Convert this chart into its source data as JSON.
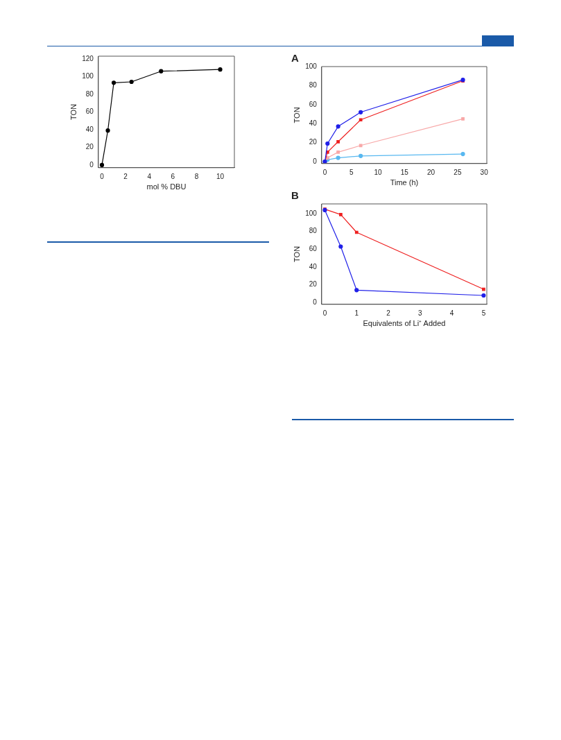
{
  "chart_data": [
    {
      "type": "line",
      "x": [
        0,
        0.5,
        1,
        2.5,
        5,
        10
      ],
      "values": [
        0,
        39,
        93,
        94,
        106,
        108
      ],
      "color": "#000000",
      "xlabel": "mol % DBU",
      "ylabel": "TON",
      "xlim": [
        -0.3,
        11.2
      ],
      "ylim": [
        -3,
        123
      ],
      "xticks": [
        0,
        2,
        4,
        6,
        8,
        10
      ],
      "yticks": [
        0,
        20,
        40,
        60,
        80,
        100,
        120
      ],
      "marker": "circle",
      "grid": false,
      "legend": false
    },
    {
      "type": "line",
      "title": "A",
      "xlabel": "Time (h)",
      "ylabel": "TON",
      "xlim": [
        -0.6,
        30.5
      ],
      "ylim": [
        -2,
        100
      ],
      "xticks": [
        0,
        5,
        10,
        15,
        20,
        25,
        30
      ],
      "yticks": [
        0,
        20,
        40,
        60,
        80,
        100
      ],
      "grid": false,
      "legend": false,
      "series": [
        {
          "color": "#2020e8",
          "marker": "circle",
          "x": [
            0,
            0.5,
            2.5,
            6.75,
            26
          ],
          "values": [
            0,
            19,
            37,
            52,
            86
          ]
        },
        {
          "color": "#ee2020",
          "marker": "square",
          "x": [
            0,
            0.5,
            2.5,
            6.75,
            26
          ],
          "values": [
            0,
            10,
            21,
            44,
            85
          ]
        },
        {
          "color": "#f8a8a8",
          "marker": "square",
          "x": [
            0,
            0.5,
            2.5,
            6.75,
            26
          ],
          "values": [
            0,
            4,
            10,
            17,
            45
          ]
        },
        {
          "color": "#58b8f0",
          "marker": "circle",
          "x": [
            0,
            0.5,
            2.5,
            6.75,
            26
          ],
          "values": [
            0,
            2,
            4,
            6,
            8
          ]
        }
      ]
    },
    {
      "type": "line",
      "title": "B",
      "xlabel": "Equivalents of Li⁺ Added",
      "ylabel": "TON",
      "xlim": [
        -0.1,
        5.1
      ],
      "ylim": [
        -2,
        111
      ],
      "xticks": [
        0,
        1,
        2,
        3,
        4,
        5
      ],
      "yticks": [
        0,
        20,
        40,
        60,
        80,
        100
      ],
      "grid": false,
      "legend": false,
      "series": [
        {
          "color": "#2020e8",
          "marker": "circle",
          "x": [
            0,
            0.5,
            1,
            5
          ],
          "values": [
            104,
            63,
            14,
            8
          ]
        },
        {
          "color": "#ee2020",
          "marker": "square",
          "x": [
            0,
            0.5,
            1,
            5
          ],
          "values": [
            105,
            99,
            79,
            15
          ]
        }
      ]
    }
  ]
}
